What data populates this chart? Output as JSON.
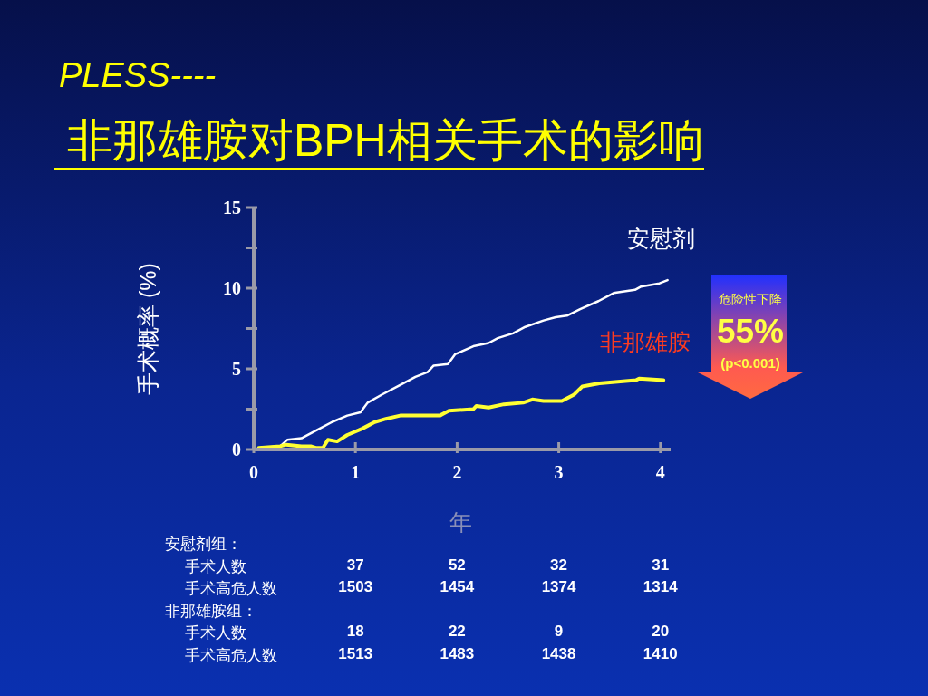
{
  "chart_data": {
    "type": "line",
    "title": "PLESS----",
    "subtitle": " 非那雄胺对BPH相关手术的影响",
    "xlabel": "年",
    "ylabel": "手术概率 (%)",
    "xlim": [
      0,
      4.1
    ],
    "xticks": [
      0,
      1,
      2,
      3,
      4
    ],
    "ylim": [
      0,
      15
    ],
    "yticks": [
      0,
      {
        "value": 2.5,
        "label": null
      },
      5,
      {
        "value": 7.5,
        "label": null
      },
      10,
      {
        "value": 12.5,
        "label": null
      },
      15
    ],
    "marker": "none",
    "line_style": "solid",
    "series": [
      {
        "name": "安慰剂",
        "color": "#ffffff",
        "x": [
          0.05,
          0.26,
          0.33,
          0.47,
          0.62,
          0.77,
          0.92,
          1.05,
          1.12,
          1.26,
          1.44,
          1.59,
          1.71,
          1.77,
          1.91,
          1.98,
          2.16,
          2.31,
          2.4,
          2.55,
          2.67,
          2.85,
          2.97,
          3.08,
          3.21,
          3.39,
          3.54,
          3.75,
          3.81,
          3.99,
          4.07
        ],
        "values": [
          0.1,
          0.2,
          0.6,
          0.7,
          1.2,
          1.7,
          2.1,
          2.3,
          2.9,
          3.4,
          4.0,
          4.5,
          4.8,
          5.2,
          5.3,
          5.9,
          6.4,
          6.6,
          6.9,
          7.2,
          7.6,
          8.0,
          8.2,
          8.3,
          8.7,
          9.2,
          9.7,
          9.9,
          10.1,
          10.3,
          10.5
        ]
      },
      {
        "name": "非那雄胺",
        "color": "#ffff33",
        "x": [
          0.05,
          0.26,
          0.32,
          0.47,
          0.56,
          0.61,
          0.68,
          0.73,
          0.82,
          0.92,
          1.07,
          1.19,
          1.3,
          1.44,
          1.83,
          1.92,
          2.16,
          2.19,
          2.31,
          2.46,
          2.65,
          2.74,
          2.85,
          3.03,
          3.15,
          3.23,
          3.4,
          3.76,
          3.79,
          4.03
        ],
        "values": [
          0.1,
          0.2,
          0.3,
          0.2,
          0.2,
          0.1,
          0.1,
          0.6,
          0.5,
          0.9,
          1.3,
          1.7,
          1.9,
          2.1,
          2.1,
          2.4,
          2.5,
          2.7,
          2.6,
          2.8,
          2.9,
          3.1,
          3.0,
          3.0,
          3.4,
          3.9,
          4.1,
          4.3,
          4.4,
          4.3
        ]
      }
    ],
    "annotations": [
      "危险性下降",
      "55%",
      "(p<0.001)",
      "安慰剂组：",
      "手术人数 37 52 32 31",
      "手术高危人数 1503 1454 1374 1314",
      "非那雄胺组：",
      "手术人数 18 22 9 20",
      "手术高危人数 1513 1483 1438 1410"
    ]
  }
}
